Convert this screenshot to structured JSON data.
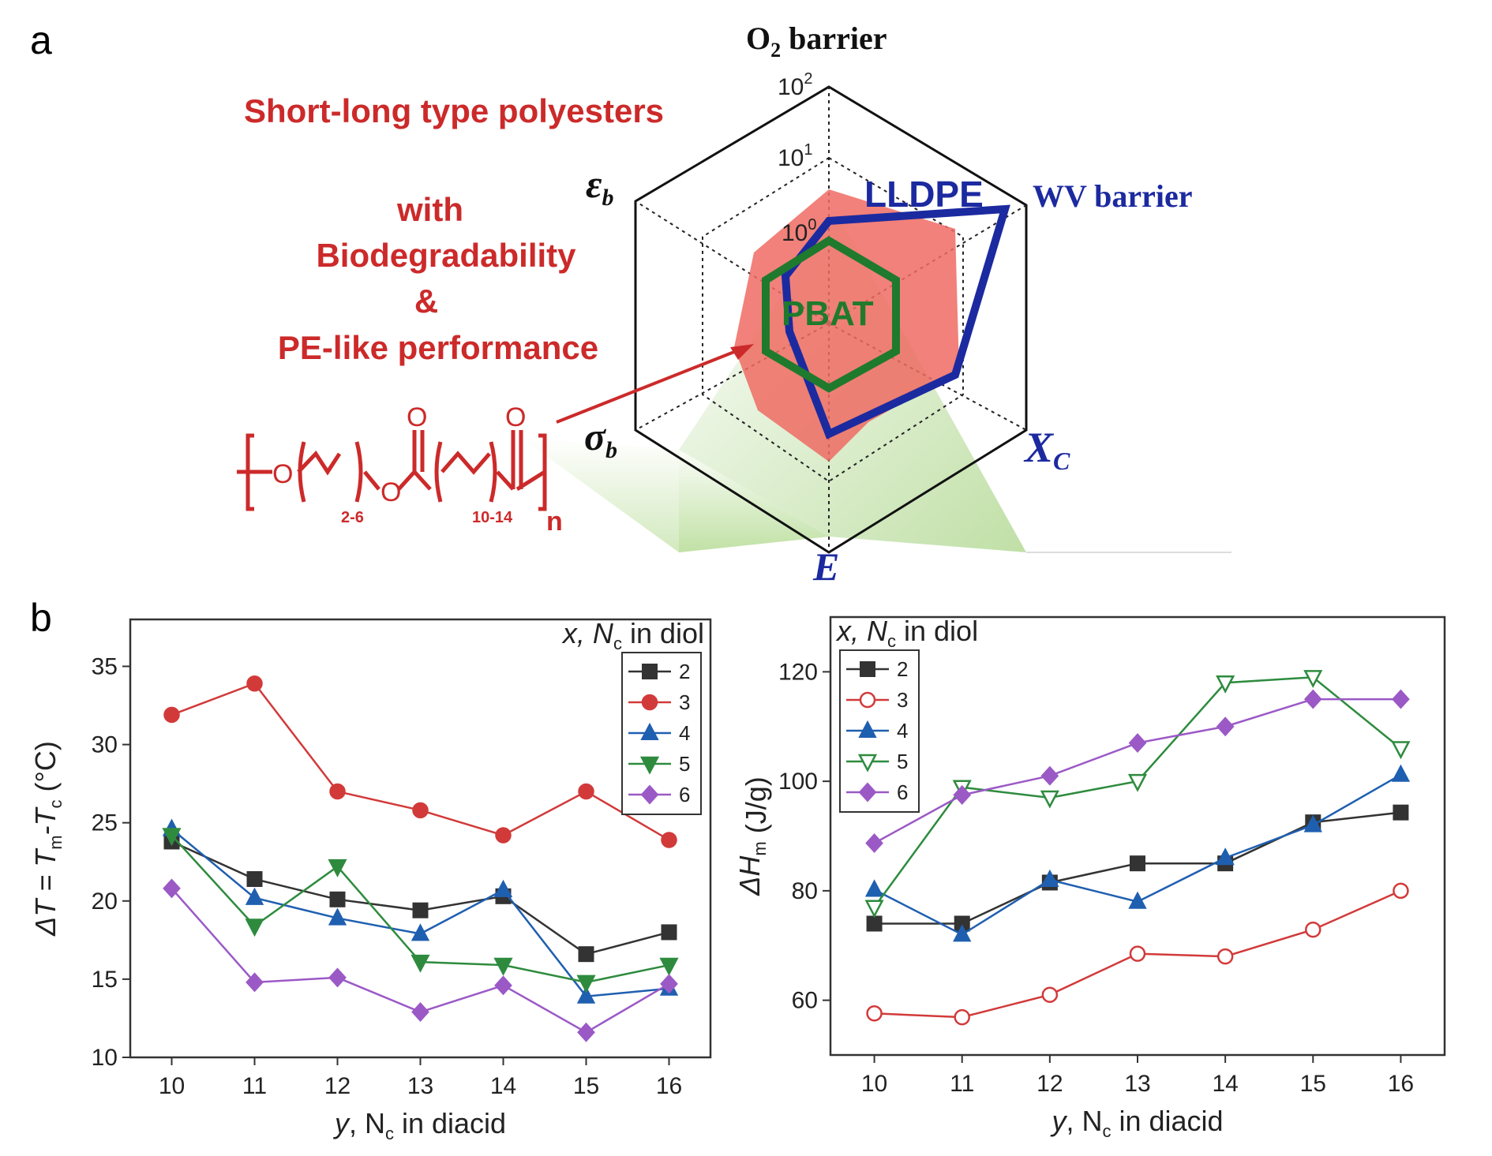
{
  "panels": {
    "a_label": "a",
    "b_label": "b"
  },
  "radar": {
    "headline": "Short-long type polyesters",
    "subtitle_lines": [
      "with",
      "Biodegradability",
      "&",
      "PE-like performance"
    ],
    "axis_top": {
      "base": "O",
      "sub": "2",
      "rest": " barrier"
    },
    "axis_right_top": "WV barrier",
    "axis_right_bottom": {
      "base": "X",
      "sub": "C"
    },
    "axis_bottom": "E",
    "axis_left_top": {
      "base": "ε",
      "sub": "b"
    },
    "axis_left_bottom": {
      "base": "σ",
      "sub": "b"
    },
    "scale_labels": [
      {
        "base": "10",
        "exp": "2"
      },
      {
        "base": "10",
        "exp": "1"
      },
      {
        "base": "10",
        "exp": "0"
      }
    ],
    "series_labels": {
      "lldpe": "LLDPE",
      "pbat": "PBAT"
    },
    "colors": {
      "lldpe": "#1c2aa0",
      "pbat": "#1f7a2e",
      "polyester_fill": "#ef6b63",
      "red": "#cc2a2a"
    },
    "structure": {
      "sub1": "2-6",
      "sub2": "10-14",
      "n": "n",
      "o": "O"
    }
  },
  "chart_data": [
    {
      "type": "line",
      "x": [
        10,
        11,
        12,
        13,
        14,
        15,
        16
      ],
      "xlabel": {
        "pre": "y",
        "mid": ", N",
        "sub": "c",
        "post": " in diacid"
      },
      "ylabel": {
        "pre": "ΔT = T",
        "sub1": "m",
        "mid": "-T",
        "sub2": "c",
        "post": "  (°C)"
      },
      "ylim": [
        10,
        38
      ],
      "yticks": [
        10,
        15,
        20,
        25,
        30,
        35
      ],
      "legend_title": {
        "pre": "x, N",
        "sub": "c",
        "post": " in diol"
      },
      "legend_position": "top-right",
      "series": [
        {
          "name": "2",
          "color": "#333333",
          "marker": "square",
          "values": [
            23.8,
            21.4,
            20.1,
            19.4,
            20.3,
            16.6,
            18.0
          ]
        },
        {
          "name": "3",
          "color": "#d23a3a",
          "marker": "circle",
          "values": [
            31.9,
            33.9,
            27.0,
            25.8,
            24.2,
            27.0,
            23.9
          ]
        },
        {
          "name": "4",
          "color": "#1f5fb0",
          "marker": "triangle-up",
          "values": [
            24.6,
            20.2,
            18.9,
            17.9,
            20.7,
            13.9,
            14.4
          ]
        },
        {
          "name": "5",
          "color": "#2e8b3e",
          "marker": "triangle-down",
          "values": [
            24.2,
            18.4,
            22.2,
            16.1,
            15.9,
            14.8,
            15.9
          ]
        },
        {
          "name": "6",
          "color": "#9b59c6",
          "marker": "diamond",
          "values": [
            20.8,
            14.8,
            15.1,
            12.9,
            14.6,
            11.6,
            14.7
          ]
        }
      ]
    },
    {
      "type": "line",
      "x": [
        10,
        11,
        12,
        13,
        14,
        15,
        16
      ],
      "xlabel": {
        "pre": "y",
        "mid": ", N",
        "sub": "c",
        "post": " in diacid"
      },
      "ylabel": {
        "pre": "ΔH",
        "sub1": "m",
        "mid": "",
        "sub2": "",
        "post": "  (J/g)"
      },
      "ylim": [
        50,
        130
      ],
      "yticks": [
        60,
        80,
        100,
        120
      ],
      "legend_title": {
        "pre": "x, N",
        "sub": "c",
        "post": " in diol"
      },
      "legend_position": "top-left",
      "series": [
        {
          "name": "2",
          "color": "#333333",
          "marker": "square",
          "values": [
            74,
            74,
            81.5,
            85,
            85,
            92.5,
            94.3
          ]
        },
        {
          "name": "3",
          "color": "#d23a3a",
          "marker": "circle-open",
          "values": [
            57.6,
            56.9,
            61.0,
            68.5,
            68.0,
            72.9,
            80.0
          ]
        },
        {
          "name": "4",
          "color": "#1f5fb0",
          "marker": "triangle-up",
          "values": [
            80.2,
            72.0,
            82.0,
            78.0,
            86.0,
            92.0,
            101.2
          ]
        },
        {
          "name": "5",
          "color": "#2e8b3e",
          "marker": "triangle-down-open",
          "values": [
            77.0,
            98.9,
            97.0,
            100.0,
            118.0,
            119.0,
            106.0
          ]
        },
        {
          "name": "6",
          "color": "#9b59c6",
          "marker": "diamond",
          "values": [
            88.7,
            97.5,
            101.0,
            107.0,
            110.0,
            115.0,
            115.0
          ]
        }
      ]
    }
  ]
}
